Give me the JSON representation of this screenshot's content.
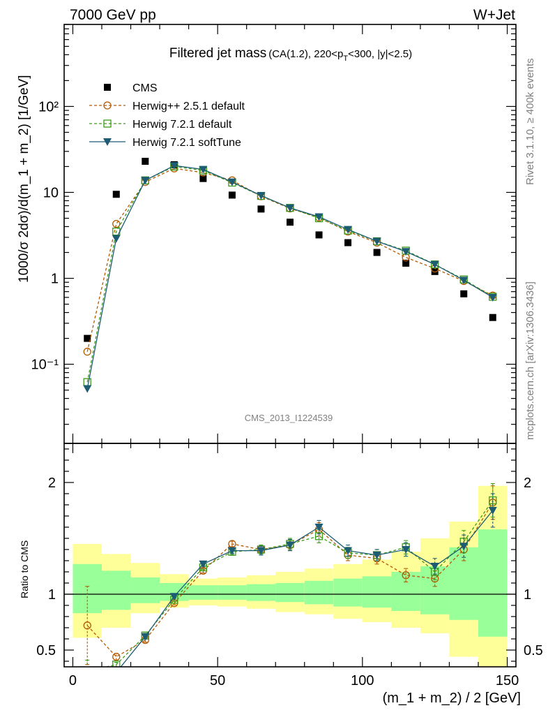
{
  "header": {
    "energy_label": "7000 GeV pp",
    "process_label": "W+Jet",
    "title_main": "Filtered jet mass",
    "title_cuts_pre": "(CA(1.2), 220<p",
    "title_cuts_sub": "T",
    "title_cuts_post": "<300, |y|<2.5)",
    "analysis_id": "CMS_2013_I1224539"
  },
  "side_labels": {
    "rivet": "Rivet 3.1.10, ≥ 400k events",
    "site": "mcplots.cern.ch [arXiv:1306.3436]"
  },
  "colors": {
    "cms": "#000000",
    "herwigpp": "#b35900",
    "herwig721": "#3b9a1a",
    "softtune": "#1d5c73",
    "band_outer": "#ffff99",
    "band_inner": "#99ff99"
  },
  "chart_data": [
    {
      "type": "scatter",
      "panel": "main",
      "ylabel": "1000/σ 2dσ)/d(m_1 + m_2) [1/GeV]",
      "yscale": "log",
      "ylim": [
        0.012,
        900
      ],
      "xlim": [
        -3,
        153
      ],
      "ytick_labels": [
        "10⁻¹",
        "1",
        "10",
        "10²"
      ],
      "ytick_values": [
        0.1,
        1,
        10,
        100
      ],
      "legend_position": "top-left",
      "x": [
        5,
        15,
        25,
        35,
        45,
        55,
        65,
        75,
        85,
        95,
        105,
        115,
        125,
        135,
        145
      ],
      "series": [
        {
          "name": "CMS",
          "marker": "square",
          "values": [
            0.2,
            9.5,
            23,
            21,
            14.5,
            9.3,
            6.4,
            4.5,
            3.2,
            2.6,
            2.0,
            1.5,
            1.2,
            0.66,
            0.35
          ]
        },
        {
          "name": "Herwig++ 2.5.1 default",
          "marker": "circle",
          "values": [
            0.14,
            4.3,
            13.2,
            19,
            17,
            13.8,
            9,
            6.5,
            5.1,
            3.5,
            2.6,
            1.75,
            1.3,
            0.93,
            0.63
          ]
        },
        {
          "name": "Herwig 7.2.1 default",
          "marker": "open-square",
          "values": [
            0.062,
            3.5,
            13.8,
            20,
            18,
            13,
            9.1,
            6.6,
            5.0,
            3.6,
            2.7,
            2.1,
            1.45,
            0.97,
            0.61
          ]
        },
        {
          "name": "Herwig 7.2.1 softTune",
          "marker": "triangle-down",
          "values": [
            0.052,
            2.9,
            13.8,
            20.5,
            18.5,
            13.2,
            9.2,
            6.6,
            5.2,
            3.7,
            2.7,
            2.05,
            1.45,
            0.95,
            0.6
          ]
        }
      ]
    },
    {
      "type": "line",
      "panel": "ratio",
      "ylabel": "Ratio to CMS",
      "xlabel": "(m_1 + m_2) / 2 [GeV]",
      "ylim": [
        0.35,
        2.35
      ],
      "xlim": [
        -3,
        153
      ],
      "xtick_labels": [
        "0",
        "50",
        "100",
        "150"
      ],
      "xtick_values": [
        0,
        50,
        100,
        150
      ],
      "ytick_labels": [
        "0.5",
        "1",
        "2"
      ],
      "ytick_values": [
        0.5,
        1,
        2
      ],
      "x": [
        5,
        15,
        25,
        35,
        45,
        55,
        65,
        75,
        85,
        95,
        105,
        115,
        125,
        135,
        145
      ],
      "bands": {
        "edges": [
          0,
          10,
          20,
          30,
          40,
          50,
          60,
          70,
          80,
          90,
          100,
          110,
          120,
          130,
          140,
          150
        ],
        "outer_lo": [
          0.61,
          0.7,
          0.83,
          0.88,
          0.9,
          0.89,
          0.87,
          0.84,
          0.82,
          0.78,
          0.75,
          0.7,
          0.65,
          0.44,
          0.35
        ],
        "outer_hi": [
          1.45,
          1.36,
          1.28,
          1.18,
          1.14,
          1.15,
          1.17,
          1.2,
          1.23,
          1.27,
          1.31,
          1.38,
          1.5,
          1.65,
          1.97
        ],
        "inner_lo": [
          0.83,
          0.86,
          0.92,
          0.94,
          0.95,
          0.95,
          0.94,
          0.93,
          0.91,
          0.89,
          0.88,
          0.85,
          0.82,
          0.77,
          0.62
        ],
        "inner_hi": [
          1.27,
          1.21,
          1.15,
          1.1,
          1.08,
          1.08,
          1.09,
          1.1,
          1.12,
          1.14,
          1.16,
          1.2,
          1.25,
          1.42,
          1.58
        ]
      },
      "series": [
        {
          "name": "Herwig++ 2.5.1 default",
          "values": [
            0.72,
            0.44,
            0.59,
            0.92,
            1.21,
            1.45,
            1.4,
            1.44,
            1.58,
            1.35,
            1.32,
            1.17,
            1.14,
            1.4,
            1.82
          ],
          "err": [
            0.35,
            0.03,
            0.02,
            0.015,
            0.02,
            0.025,
            0.04,
            0.05,
            0.06,
            0.05,
            0.05,
            0.06,
            0.07,
            0.1,
            0.15
          ]
        },
        {
          "name": "Herwig 7.2.1 default",
          "values": [
            0.31,
            0.37,
            0.63,
            0.95,
            1.24,
            1.38,
            1.4,
            1.45,
            1.52,
            1.37,
            1.35,
            1.42,
            1.2,
            1.47,
            1.84
          ],
          "err": [
            0.1,
            0.02,
            0.02,
            0.015,
            0.02,
            0.025,
            0.04,
            0.05,
            0.06,
            0.05,
            0.05,
            0.06,
            0.07,
            0.1,
            0.15
          ]
        },
        {
          "name": "Herwig 7.2.1 softTune",
          "values": [
            0.26,
            0.3,
            0.62,
            0.98,
            1.27,
            1.39,
            1.39,
            1.44,
            1.6,
            1.39,
            1.35,
            1.4,
            1.25,
            1.43,
            1.75
          ],
          "err": [
            0.08,
            0.02,
            0.02,
            0.015,
            0.02,
            0.025,
            0.04,
            0.05,
            0.06,
            0.05,
            0.05,
            0.06,
            0.07,
            0.1,
            0.15
          ]
        }
      ]
    }
  ]
}
